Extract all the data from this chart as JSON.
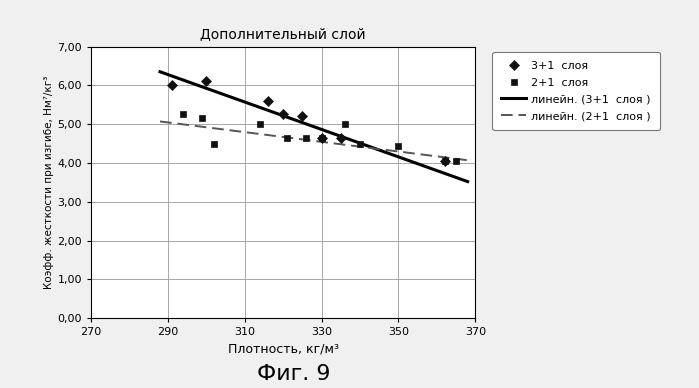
{
  "title": "Дополнительный слой",
  "xlabel": "Плотность, кг/м³",
  "ylabel": "Коэфф. жесткости при изгибе, Нм⁷/кг³",
  "fig_label": "Фиг. 9",
  "xlim": [
    270,
    370
  ],
  "ylim": [
    0.0,
    7.0
  ],
  "xticks": [
    270,
    290,
    310,
    330,
    350,
    370
  ],
  "yticks": [
    0.0,
    1.0,
    2.0,
    3.0,
    4.0,
    5.0,
    6.0,
    7.0
  ],
  "series1_x": [
    291,
    300,
    316,
    320,
    325,
    330,
    335,
    362
  ],
  "series1_y": [
    6.0,
    6.1,
    5.6,
    5.25,
    5.2,
    4.65,
    4.65,
    4.05
  ],
  "series2_x": [
    294,
    299,
    302,
    314,
    321,
    326,
    330,
    336,
    340,
    350,
    362,
    365
  ],
  "series2_y": [
    5.25,
    5.15,
    4.5,
    5.0,
    4.65,
    4.65,
    4.65,
    5.0,
    4.5,
    4.45,
    4.05,
    4.05
  ],
  "line1_x": [
    288,
    368
  ],
  "line1_y": [
    6.35,
    3.52
  ],
  "line2_x": [
    288,
    368
  ],
  "line2_y": [
    5.07,
    4.07
  ],
  "legend1": "3+1  слоя",
  "legend2": "2+1  слоя",
  "legend3": "линейн. (3+1  слоя )",
  "legend4": "линейн. (2+1  слоя )",
  "background_color": "#f0f0f0",
  "plot_bg_color": "#ffffff",
  "grid_color": "#999999",
  "marker1_color": "#111111",
  "marker2_color": "#111111",
  "line1_color": "#000000",
  "line2_color": "#555555"
}
